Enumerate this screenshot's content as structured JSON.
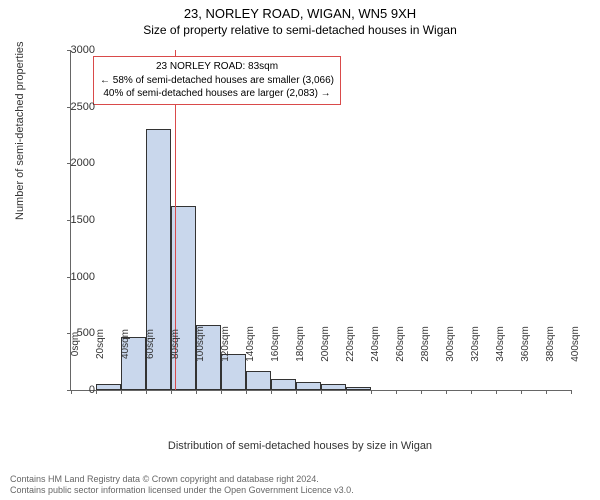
{
  "title": "23, NORLEY ROAD, WIGAN, WN5 9XH",
  "subtitle": "Size of property relative to semi-detached houses in Wigan",
  "chart": {
    "type": "histogram",
    "ylabel": "Number of semi-detached properties",
    "xlabel": "Distribution of semi-detached houses by size in Wigan",
    "ylim": [
      0,
      3000
    ],
    "ytick_step": 500,
    "xlim": [
      0,
      400
    ],
    "xtick_step": 20,
    "xtick_suffix": "sqm",
    "bar_color": "#c9d7ec",
    "bar_border": "#333333",
    "background_color": "#ffffff",
    "bins": [
      0,
      20,
      40,
      60,
      80,
      100,
      120,
      140,
      160,
      180,
      200,
      220,
      240,
      260,
      280,
      300,
      320,
      340,
      360,
      380,
      400
    ],
    "values": [
      0,
      50,
      470,
      2300,
      1620,
      570,
      320,
      170,
      100,
      70,
      50,
      30,
      0,
      0,
      0,
      0,
      0,
      0,
      0,
      0
    ],
    "marker": {
      "value": 83,
      "color": "#d94a4a",
      "label_lines": [
        "23 NORLEY ROAD: 83sqm",
        "← 58% of semi-detached houses are smaller (3,066)",
        "40% of semi-detached houses are larger (2,083) →"
      ]
    }
  },
  "footer": {
    "line1": "Contains HM Land Registry data © Crown copyright and database right 2024.",
    "line2": "Contains public sector information licensed under the Open Government Licence v3.0."
  }
}
